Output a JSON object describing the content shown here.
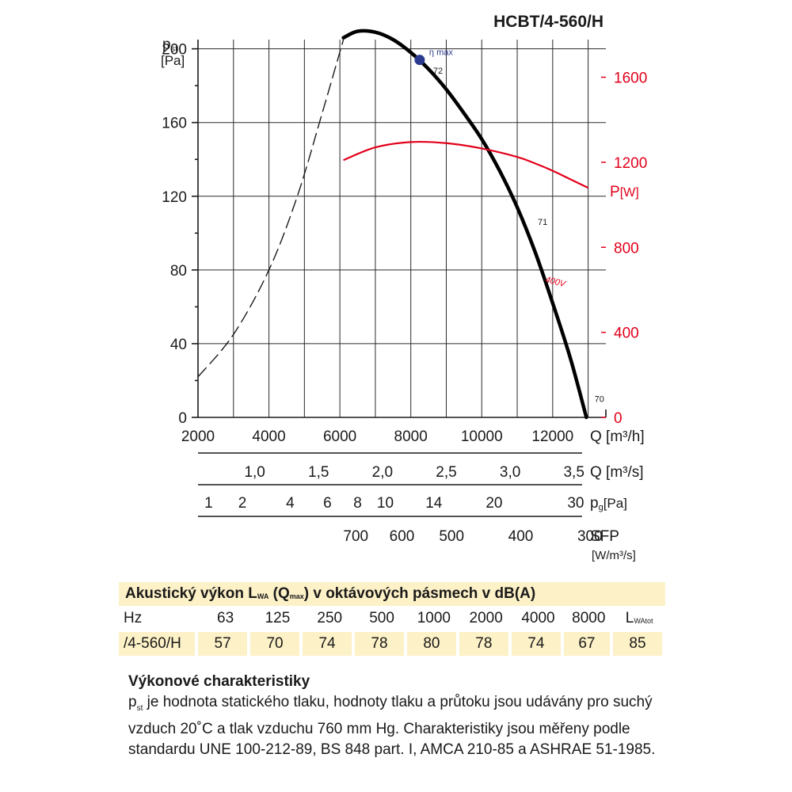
{
  "title": "HCBT/4-560/H",
  "chart_data": {
    "type": "line",
    "title": "HCBT/4-560/H",
    "x_axis": {
      "label": "Q",
      "unit": "[m³/h]",
      "range": [
        2000,
        13500
      ],
      "ticks": [
        2000,
        4000,
        6000,
        8000,
        10000,
        12000
      ]
    },
    "y_axis": {
      "label": "pst",
      "unit": "[Pa]",
      "range": [
        0,
        205
      ],
      "ticks": [
        0,
        40,
        80,
        120,
        160,
        200
      ]
    },
    "y2_axis": {
      "label": "P",
      "unit": "[W]",
      "range": [
        0,
        1777
      ],
      "ticks": [
        0,
        400,
        800,
        1200,
        1600
      ]
    },
    "grid": true,
    "series": [
      {
        "name": "",
        "axis": "y",
        "style": "dashed",
        "x": [
          2000,
          3000,
          4000,
          4800,
          5500,
          6100
        ],
        "y": [
          22,
          45,
          80,
          120,
          165,
          205
        ]
      },
      {
        "name": "",
        "axis": "y",
        "style": "solid",
        "x": [
          6100,
          6500,
          7000,
          7500,
          8000,
          8500,
          9000,
          9500,
          10000,
          10500,
          11000,
          11500,
          12000,
          12500,
          12950
        ],
        "y": [
          206,
          209.5,
          209,
          205,
          198,
          189,
          178,
          165,
          151,
          134,
          114,
          90,
          62,
          32,
          0
        ]
      },
      {
        "name": "400V",
        "axis": "y2",
        "style": "red",
        "x": [
          6100,
          7000,
          8000,
          9000,
          10000,
          11000,
          11500,
          12000,
          12500,
          13000
        ],
        "y": [
          1210,
          1270,
          1295,
          1290,
          1265,
          1225,
          1195,
          1160,
          1120,
          1080
        ]
      }
    ],
    "annotations": {
      "eta_max": {
        "label": "η max",
        "x": 8250,
        "y": 194
      },
      "efficiency_labels": [
        {
          "text": "72",
          "x": 8450,
          "y": 183
        },
        {
          "text": "71",
          "x": 11400,
          "y": 101
        },
        {
          "text": "70",
          "x": 13000,
          "y": 5
        }
      ],
      "voltage_label": "400V"
    },
    "secondary_scales": [
      {
        "label": "Q",
        "unit": "[m³/s]",
        "ticks": [
          {
            "text": "1,0",
            "x": 3600
          },
          {
            "text": "1,5",
            "x": 5400
          },
          {
            "text": "2,0",
            "x": 7200
          },
          {
            "text": "2,5",
            "x": 9000
          },
          {
            "text": "3,0",
            "x": 10800
          },
          {
            "text": "3,5",
            "x": 12600
          }
        ]
      },
      {
        "label": "pg",
        "unit": "[Pa]",
        "ticks": [
          {
            "text": "1",
            "x": 2300
          },
          {
            "text": "2",
            "x": 3250
          },
          {
            "text": "4",
            "x": 4600
          },
          {
            "text": "6",
            "x": 5650
          },
          {
            "text": "8",
            "x": 6500
          },
          {
            "text": "10",
            "x": 7280
          },
          {
            "text": "14",
            "x": 8650
          },
          {
            "text": "20",
            "x": 10350
          },
          {
            "text": "30",
            "x": 12650
          }
        ]
      },
      {
        "label": "SFP",
        "unit": "[W/m³/s]",
        "ticks": [
          {
            "text": "700",
            "x": 6450
          },
          {
            "text": "600",
            "x": 7750
          },
          {
            "text": "500",
            "x": 9150
          },
          {
            "text": "400",
            "x": 11100
          },
          {
            "text": "300",
            "x": 13050
          }
        ]
      }
    ]
  },
  "acoustic": {
    "title": "Akustický výkon L",
    "title_sub": "WA",
    "title_mid": " (Q",
    "title_sub2": "max",
    "title_end": ") v oktávových pásmech v dB(A)",
    "hz_label": "Hz",
    "bands": [
      "63",
      "125",
      "250",
      "500",
      "1000",
      "2000",
      "4000",
      "8000"
    ],
    "total_label": "L",
    "total_sub": "WAtot",
    "row_label": "/4-560/H",
    "values": [
      "57",
      "70",
      "74",
      "78",
      "80",
      "78",
      "74",
      "67"
    ],
    "total_value": "85"
  },
  "description": {
    "heading": "Výkonové charakteristiky",
    "p_prefix": "p",
    "p_sub": "st",
    "text": " je hodnota statického tlaku, hodnoty tlaku a průtoku jsou udávány pro suchý vzduch 20˚C a tlak vzduchu 760 mm Hg. Charakteristiky jsou měřeny podle standardu UNE 100-212-89, BS 848 part. I, AMCA 210-85 a ASHRAE 51-1985."
  }
}
